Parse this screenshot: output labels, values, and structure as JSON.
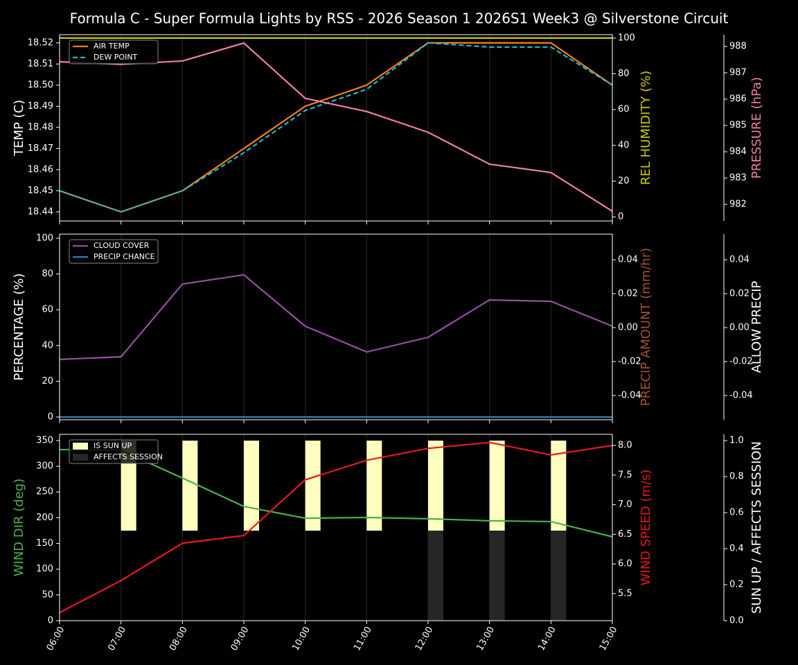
{
  "chart_data": [
    {
      "type": "line",
      "title": "Formula C - Super Formula Lights by RSS - 2026 Season 1 2026S1 Week3 @ Silverstone Circuit",
      "ylabel": "TEMP (C)",
      "ylabel_color": "#ffffff",
      "ylim": [
        18.4357,
        18.5239
      ],
      "yticks": [
        18.44,
        18.45,
        18.46,
        18.47,
        18.48,
        18.49,
        {
          "value": 18.5,
          "label": "18.50"
        },
        18.51,
        18.52
      ],
      "y2label": "REL HUMIDITY (%)",
      "y2label_color": "#cccc00",
      "y2lim": [
        -2.3,
        101.9
      ],
      "y2ticks": [
        0,
        20,
        40,
        60,
        80,
        100
      ],
      "y3label": "PRESSURE (hPa)",
      "y3label_color": "#f17cb0",
      "y3lim": [
        981.37,
        988.45
      ],
      "y3ticks": [
        982,
        983,
        984,
        985,
        986,
        987,
        988
      ],
      "legend": "upper left",
      "xgrid": true,
      "series": [
        {
          "name": "AIR TEMP",
          "type": "line",
          "axis": "y",
          "color": "#ff7f0e",
          "in_legend": true,
          "values": [
            18.45,
            18.44,
            18.45,
            18.47,
            18.49,
            18.5,
            18.52,
            18.52,
            18.52,
            18.5
          ]
        },
        {
          "name": "DEW POINT",
          "type": "line",
          "axis": "y",
          "color": "#17becf",
          "dash": true,
          "in_legend": true,
          "values": [
            18.45,
            18.44,
            18.45,
            18.468,
            18.488,
            18.498,
            18.52,
            18.518,
            18.518,
            18.5
          ]
        },
        {
          "name": "REL HUMIDITY",
          "type": "line",
          "axis": "y2",
          "color": "#cccc00",
          "in_legend": false,
          "values": [
            100,
            100,
            100,
            100,
            100,
            100,
            100,
            100,
            100,
            100
          ]
        },
        {
          "name": "PRESSURE",
          "type": "line",
          "axis": "y3",
          "color": "#f17cb0",
          "in_legend": false,
          "values": [
            987.42,
            987.32,
            987.45,
            988.13,
            986.03,
            985.53,
            984.74,
            983.53,
            983.21,
            981.74
          ]
        }
      ]
    },
    {
      "type": "line",
      "ylabel": "PERCENTAGE (%)",
      "ylabel_color": "#ffffff",
      "ylim": [
        -1.55,
        102.3
      ],
      "yticks": [
        0,
        20,
        40,
        60,
        80,
        100
      ],
      "y2label": "PRECIP AMOUNT (mm/hr)",
      "y2label_color": "#a0522d",
      "y2lim": [
        -0.0543,
        0.0551
      ],
      "y2ticks": [
        -0.04,
        -0.02,
        {
          "value": 0,
          "label": "0.00"
        },
        0.02,
        0.04
      ],
      "y3label": "ALLOW PRECIP",
      "y3label_color": "#ffffff",
      "y3lim": [
        -0.0543,
        0.0551
      ],
      "y3ticks": [
        -0.04,
        -0.02,
        {
          "value": 0,
          "label": "0.00"
        },
        0.02,
        0.04
      ],
      "legend": "upper left",
      "xgrid": true,
      "series": [
        {
          "name": "CLOUD COVER",
          "type": "line",
          "axis": "y",
          "color": "#984ea3",
          "in_legend": true,
          "values": [
            32.2,
            33.7,
            74.4,
            79.5,
            50.8,
            36.4,
            44.6,
            65.5,
            64.7,
            50.8
          ]
        },
        {
          "name": "PRECIP CHANCE",
          "type": "line",
          "axis": "y",
          "color": "#377eb8",
          "in_legend": true,
          "values": [
            0,
            0,
            0,
            0,
            0,
            0,
            0,
            0,
            0,
            0
          ]
        }
      ]
    },
    {
      "type": "line",
      "categories": [
        "06:00",
        "07:00",
        "08:00",
        "09:00",
        "10:00",
        "11:00",
        "12:00",
        "13:00",
        "14:00",
        "15:00"
      ],
      "ylabel": "WIND DIR (deg)",
      "ylabel_color": "#4daf4a",
      "ylim": [
        0,
        362
      ],
      "yticks": [
        0,
        50,
        100,
        150,
        200,
        250,
        300,
        350
      ],
      "y2label": "WIND SPEED (m/s)",
      "y2label_color": "#e41a1c",
      "y2lim": [
        5.044,
        8.187
      ],
      "y2ticks": [
        5.5,
        {
          "value": 6,
          "label": "6.0"
        },
        6.5,
        {
          "value": 7,
          "label": "7.0"
        },
        7.5,
        {
          "value": 8,
          "label": "8.0"
        }
      ],
      "y3label": "SUN UP / AFFECTS SESSION",
      "y3label_color": "#ffffff",
      "y3lim": [
        0,
        1.035
      ],
      "y3ticks": [
        {
          "value": 0,
          "label": "0.0"
        },
        0.2,
        0.4,
        0.6,
        0.8,
        {
          "value": 1,
          "label": "1.0"
        }
      ],
      "legend": "upper left",
      "xgrid": true,
      "series": [
        {
          "name": "IS SUN UP",
          "type": "bar",
          "axis": "y3",
          "color": "#ffffc0",
          "bottom": 0.5,
          "in_legend": true,
          "values": [
            0,
            0.5,
            0.5,
            0.5,
            0.5,
            0.5,
            0.5,
            0.5,
            0.5,
            0
          ]
        },
        {
          "name": "AFFECTS SESSION",
          "type": "bar",
          "axis": "y3",
          "color": "#262626",
          "in_legend": true,
          "values": [
            0,
            0,
            0,
            0,
            0,
            0,
            0.5,
            0.5,
            0.5,
            0
          ]
        },
        {
          "name": "WIND DIR",
          "type": "line",
          "axis": "y",
          "color": "#4daf4a",
          "in_legend": false,
          "values": [
            332.5,
            331,
            277,
            222,
            199,
            200.5,
            198,
            194,
            192.5,
            163
          ]
        },
        {
          "name": "WIND SPEED",
          "type": "line",
          "axis": "y2",
          "color": "#e41a1c",
          "in_legend": false,
          "values": [
            5.18,
            5.72,
            6.35,
            6.48,
            7.42,
            7.75,
            7.95,
            8.05,
            7.84,
            8.0
          ]
        }
      ]
    }
  ]
}
